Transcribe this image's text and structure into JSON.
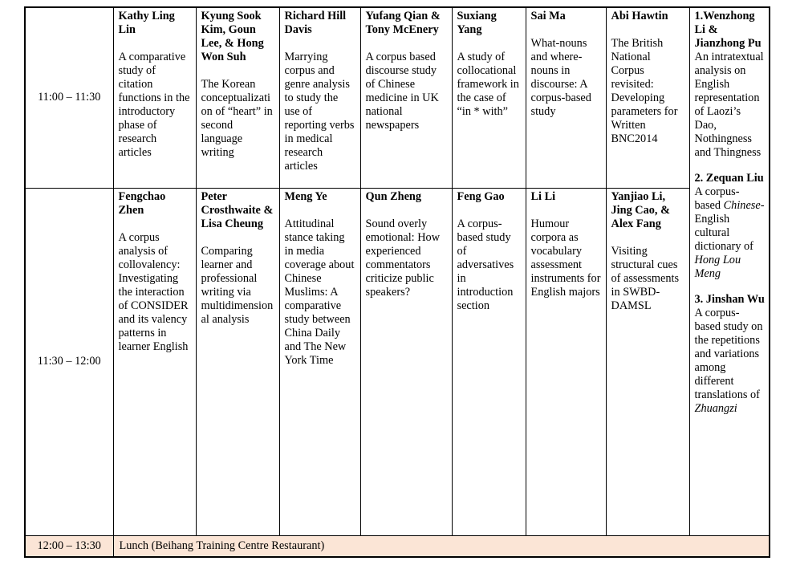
{
  "colors": {
    "lunch_bg": "#fbe5d6",
    "border": "#000000",
    "text": "#000000",
    "page_bg": "#ffffff"
  },
  "rows": [
    {
      "time": "11:00 – 11:30",
      "sessions": [
        {
          "authors": "Kathy Ling Lin",
          "title": "A comparative study of citation functions in the introductory phase of research articles"
        },
        {
          "authors": "Kyung Sook Kim, Goun Lee, & Hong Won Suh",
          "title": "The Korean conceptualization of “heart” in second language writing"
        },
        {
          "authors": "Richard Hill Davis",
          "title": "Marrying corpus and genre analysis to study the use of reporting verbs in medical research articles"
        },
        {
          "authors": "Yufang Qian & Tony McEnery",
          "title": "A corpus based discourse study of Chinese medicine in UK national newspapers"
        },
        {
          "authors": "Suxiang Yang",
          "title": "A study of collocational framework in the case of “in * with”"
        },
        {
          "authors": "Sai Ma",
          "title": "What-nouns and where-nouns in discourse: A corpus-based study"
        },
        {
          "authors": "Abi Hawtin",
          "title": "The British National Corpus revisited: Developing parameters for Written BNC2014"
        }
      ]
    },
    {
      "time": "11:30 – 12:00",
      "sessions": [
        {
          "authors": "Fengchao Zhen",
          "title": "A corpus analysis of collovalency: Investigating the interaction of CONSIDER and its valency patterns in learner English"
        },
        {
          "authors": "Peter Crosthwaite & Lisa Cheung",
          "title": "Comparing learner and professional writing via multidimensional analysis"
        },
        {
          "authors": "Meng Ye",
          "title": "Attitudinal stance taking in media coverage about Chinese Muslims: A comparative study between China Daily and The New York Time"
        },
        {
          "authors": "Qun Zheng",
          "title": "Sound overly emotional: How experienced commentators criticize public speakers?"
        },
        {
          "authors": "Feng Gao",
          "title": "A corpus-based study of adversatives in introduction section"
        },
        {
          "authors": "Li Li",
          "title": "Humour corpora as vocabulary assessment instruments for English majors"
        },
        {
          "authors": "Yanjiao Li, Jing Cao, & Alex Fang",
          "title": "Visiting structural cues of assessments in SWBD-DAMSL"
        }
      ]
    }
  ],
  "spanning_cell": {
    "items": [
      {
        "authors": "1.Wenzhong Li & Jianzhong Pu",
        "title_runs": [
          {
            "t": "An intratextual analysis on English representation of Laozi’s Dao, Nothingness and Thingness"
          }
        ]
      },
      {
        "authors": "2. Zequan Liu",
        "title_runs": [
          {
            "t": "A corpus-based "
          },
          {
            "t": "Chinese-",
            "i": true
          },
          {
            "t": "English cultural dictionary of "
          },
          {
            "t": "Hong Lou Meng",
            "i": true
          }
        ]
      },
      {
        "authors": "3. Jinshan Wu",
        "title_runs": [
          {
            "t": "A corpus-based study on the repetitions and variations among different translations of "
          },
          {
            "t": "Zhuangzi",
            "i": true
          }
        ]
      }
    ]
  },
  "lunch": {
    "time": "12:00 – 13:30",
    "label": "Lunch (Beihang Training Centre Restaurant)"
  }
}
